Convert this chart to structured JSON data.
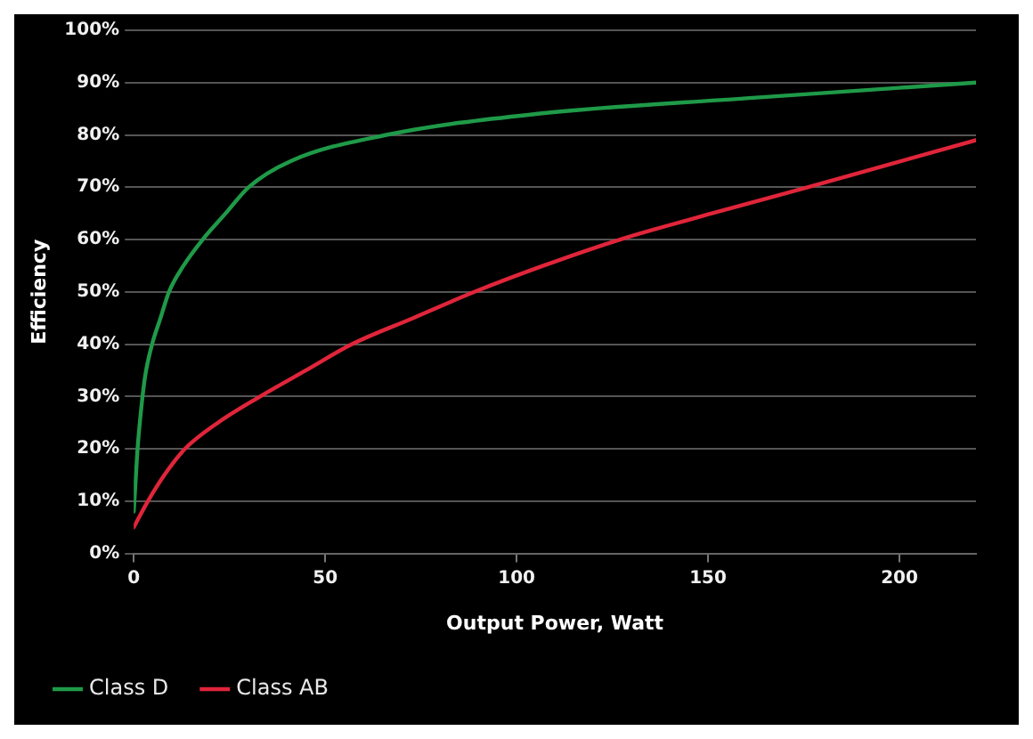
{
  "chart_data": {
    "type": "line",
    "xlabel": "Output Power, Watt",
    "ylabel": "Efficiency",
    "xlim": [
      0,
      220
    ],
    "xticks": [
      0,
      50,
      100,
      150,
      200
    ],
    "ylim": [
      0,
      100
    ],
    "yticks": [
      {
        "value": 0,
        "label": "0%"
      },
      {
        "value": 10,
        "label": "10%"
      },
      {
        "value": 20,
        "label": "20%"
      },
      {
        "value": 30,
        "label": "30%"
      },
      {
        "value": 40,
        "label": "40%"
      },
      {
        "value": 50,
        "label": "50%"
      },
      {
        "value": 60,
        "label": "60%"
      },
      {
        "value": 70,
        "label": "70%"
      },
      {
        "value": 80,
        "label": "80%"
      },
      {
        "value": 90,
        "label": "90%"
      },
      {
        "value": 100,
        "label": "100%"
      }
    ],
    "grid": "y",
    "legend": "bottom",
    "marker": "none",
    "line_style": "solid",
    "series": [
      {
        "name": "Class D",
        "color": "#1f9a48",
        "x": [
          0,
          0.5,
          1,
          2,
          3,
          4.8,
          7,
          9.2,
          13,
          18,
          24,
          30,
          41,
          66,
          105,
          160,
          220
        ],
        "values": [
          8,
          14,
          20,
          28,
          34,
          40,
          45,
          50,
          55,
          60,
          65,
          70,
          75,
          80,
          84,
          87,
          90
        ]
      },
      {
        "name": "Class AB",
        "color": "#e0253a",
        "x": [
          0,
          3.7,
          8,
          13.4,
          22,
          33,
          45,
          57,
          73,
          89,
          107,
          127,
          151,
          176,
          198,
          220
        ],
        "values": [
          5,
          10,
          15,
          20,
          25,
          30,
          35,
          40,
          45,
          50,
          55,
          60,
          65,
          70,
          74.5,
          79
        ]
      }
    ]
  }
}
